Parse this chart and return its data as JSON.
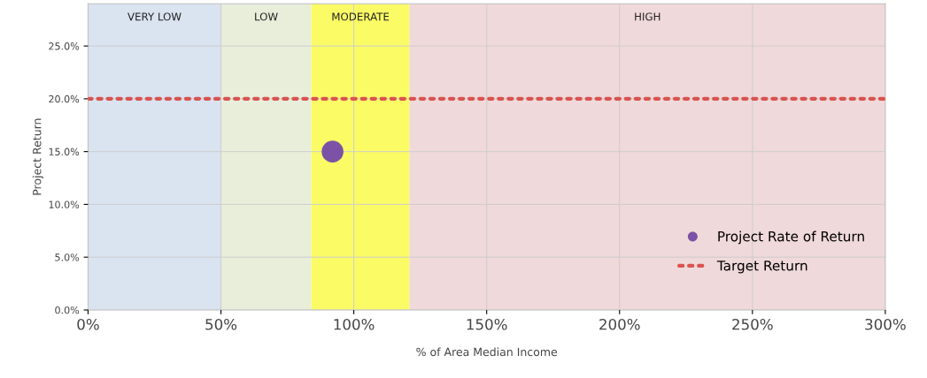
{
  "chart_data": {
    "type": "scatter",
    "xlabel": "% of Area Median Income",
    "ylabel": "Project Return",
    "xlim": [
      0,
      300
    ],
    "ylim": [
      0,
      29
    ],
    "xticks": [
      {
        "value": 0,
        "label": "0%"
      },
      {
        "value": 50,
        "label": "50%"
      },
      {
        "value": 100,
        "label": "100%"
      },
      {
        "value": 150,
        "label": "150%"
      },
      {
        "value": 200,
        "label": "200%"
      },
      {
        "value": 250,
        "label": "250%"
      },
      {
        "value": 300,
        "label": "300%"
      }
    ],
    "yticks": [
      {
        "value": 0,
        "label": "0.0%"
      },
      {
        "value": 5,
        "label": "5.0%"
      },
      {
        "value": 10,
        "label": "10.0%"
      },
      {
        "value": 15,
        "label": "15.0%"
      },
      {
        "value": 20,
        "label": "20.0%"
      },
      {
        "value": 25,
        "label": "25.0%"
      }
    ],
    "grid": true,
    "legend": "bottom right",
    "bands": [
      {
        "axis": "x",
        "from": 0,
        "to": 50,
        "label": "VERY LOW",
        "color": "#dae3f0"
      },
      {
        "axis": "x",
        "from": 50,
        "to": 84,
        "label": "LOW",
        "color": "#e9eedb"
      },
      {
        "axis": "x",
        "from": 84,
        "to": 121,
        "label": "MODERATE",
        "color": "#fbfb66"
      },
      {
        "axis": "x",
        "from": 121,
        "to": 300,
        "label": "HIGH",
        "color": "#f0d9da"
      }
    ],
    "series": [
      {
        "name": "Project Rate of Return",
        "type": "scatter",
        "color": "#7b52a6",
        "x": [
          92
        ],
        "values": [
          15
        ],
        "marker": "circle"
      },
      {
        "name": "Target Return",
        "type": "line",
        "color": "#d9534f",
        "x": [
          0,
          300
        ],
        "values": [
          20,
          20
        ],
        "line_style": "dotted"
      }
    ]
  }
}
